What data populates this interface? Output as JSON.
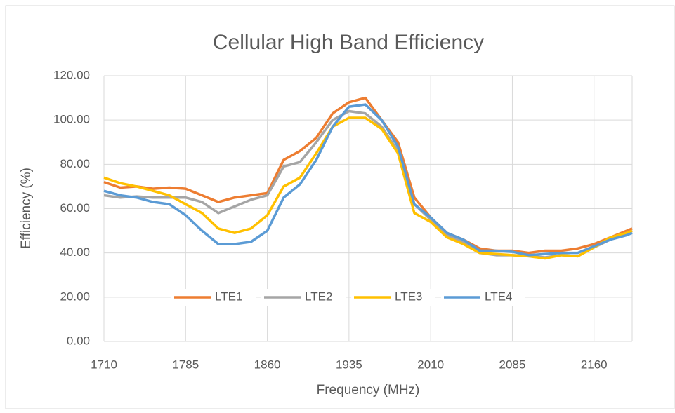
{
  "chart_data": {
    "type": "line",
    "title": "Cellular High Band Efficiency",
    "x_label": "Frequency (MHz)",
    "y_label": "Efficiency (%)",
    "x": [
      1710,
      1725,
      1740,
      1755,
      1770,
      1785,
      1800,
      1815,
      1830,
      1845,
      1860,
      1875,
      1890,
      1905,
      1920,
      1935,
      1950,
      1965,
      1980,
      1995,
      2010,
      2025,
      2040,
      2055,
      2070,
      2085,
      2100,
      2115,
      2130,
      2145,
      2160,
      2175,
      2190,
      2195
    ],
    "series": [
      {
        "name": "LTE1",
        "color": "#ed7d31",
        "values": [
          72,
          69.5,
          70,
          69,
          69.5,
          69,
          66,
          63,
          65,
          66,
          67,
          82,
          86,
          92,
          103,
          108,
          110,
          100,
          90,
          65,
          56,
          49,
          46,
          42,
          41,
          41,
          40,
          41,
          41,
          42,
          44,
          47,
          50,
          51
        ]
      },
      {
        "name": "LTE2",
        "color": "#a5a5a5",
        "values": [
          66,
          65,
          65.5,
          65,
          65,
          65,
          63,
          58,
          61,
          64,
          66,
          79,
          81,
          90,
          100,
          104,
          103,
          97,
          86,
          62,
          55,
          48,
          45,
          40,
          39,
          39,
          38.5,
          38,
          39,
          38.5,
          42.5,
          46,
          49,
          50
        ]
      },
      {
        "name": "LTE3",
        "color": "#ffc000",
        "values": [
          74,
          71.5,
          70,
          68,
          66,
          62,
          58,
          51,
          49,
          51,
          57,
          70,
          74,
          85,
          97,
          101,
          101,
          96,
          85,
          58,
          54,
          47,
          44,
          40,
          39.5,
          39,
          38.5,
          37.5,
          39,
          38.5,
          42.5,
          47,
          49,
          50
        ]
      },
      {
        "name": "LTE4",
        "color": "#5b9bd5",
        "values": [
          68,
          66,
          65,
          63,
          62,
          57,
          50,
          44,
          44,
          45,
          50,
          65,
          71,
          82,
          97,
          106,
          107,
          100,
          88,
          62,
          56,
          49,
          46,
          41,
          41,
          40.5,
          39,
          39.5,
          40,
          40,
          43,
          46,
          48,
          49
        ]
      }
    ],
    "xlim": [
      1710,
      2195
    ],
    "xticks": [
      1710,
      1785,
      1860,
      1935,
      2010,
      2085,
      2160
    ],
    "ylim": [
      0,
      120
    ],
    "yticks": [
      {
        "value": 0,
        "label": "0.00"
      },
      {
        "value": 20,
        "label": "20.00"
      },
      {
        "value": 40,
        "label": "40.00"
      },
      {
        "value": 60,
        "label": "60.00"
      },
      {
        "value": 80,
        "label": "80.00"
      },
      {
        "value": 100,
        "label": "100.00"
      },
      {
        "value": 120,
        "label": "120.00"
      }
    ],
    "grid": true,
    "legend": "bottom"
  }
}
